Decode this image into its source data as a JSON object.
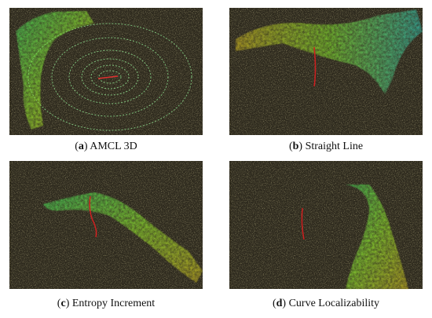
{
  "panels": [
    {
      "caption": [
        "(",
        "a",
        ") AMCL 3D"
      ]
    },
    {
      "caption": [
        "(",
        "b",
        ") Straight Line"
      ]
    },
    {
      "caption": [
        "(",
        "c",
        ") Entropy Increment"
      ]
    },
    {
      "caption": [
        "(",
        "d",
        ") Curve Localizability"
      ]
    }
  ]
}
